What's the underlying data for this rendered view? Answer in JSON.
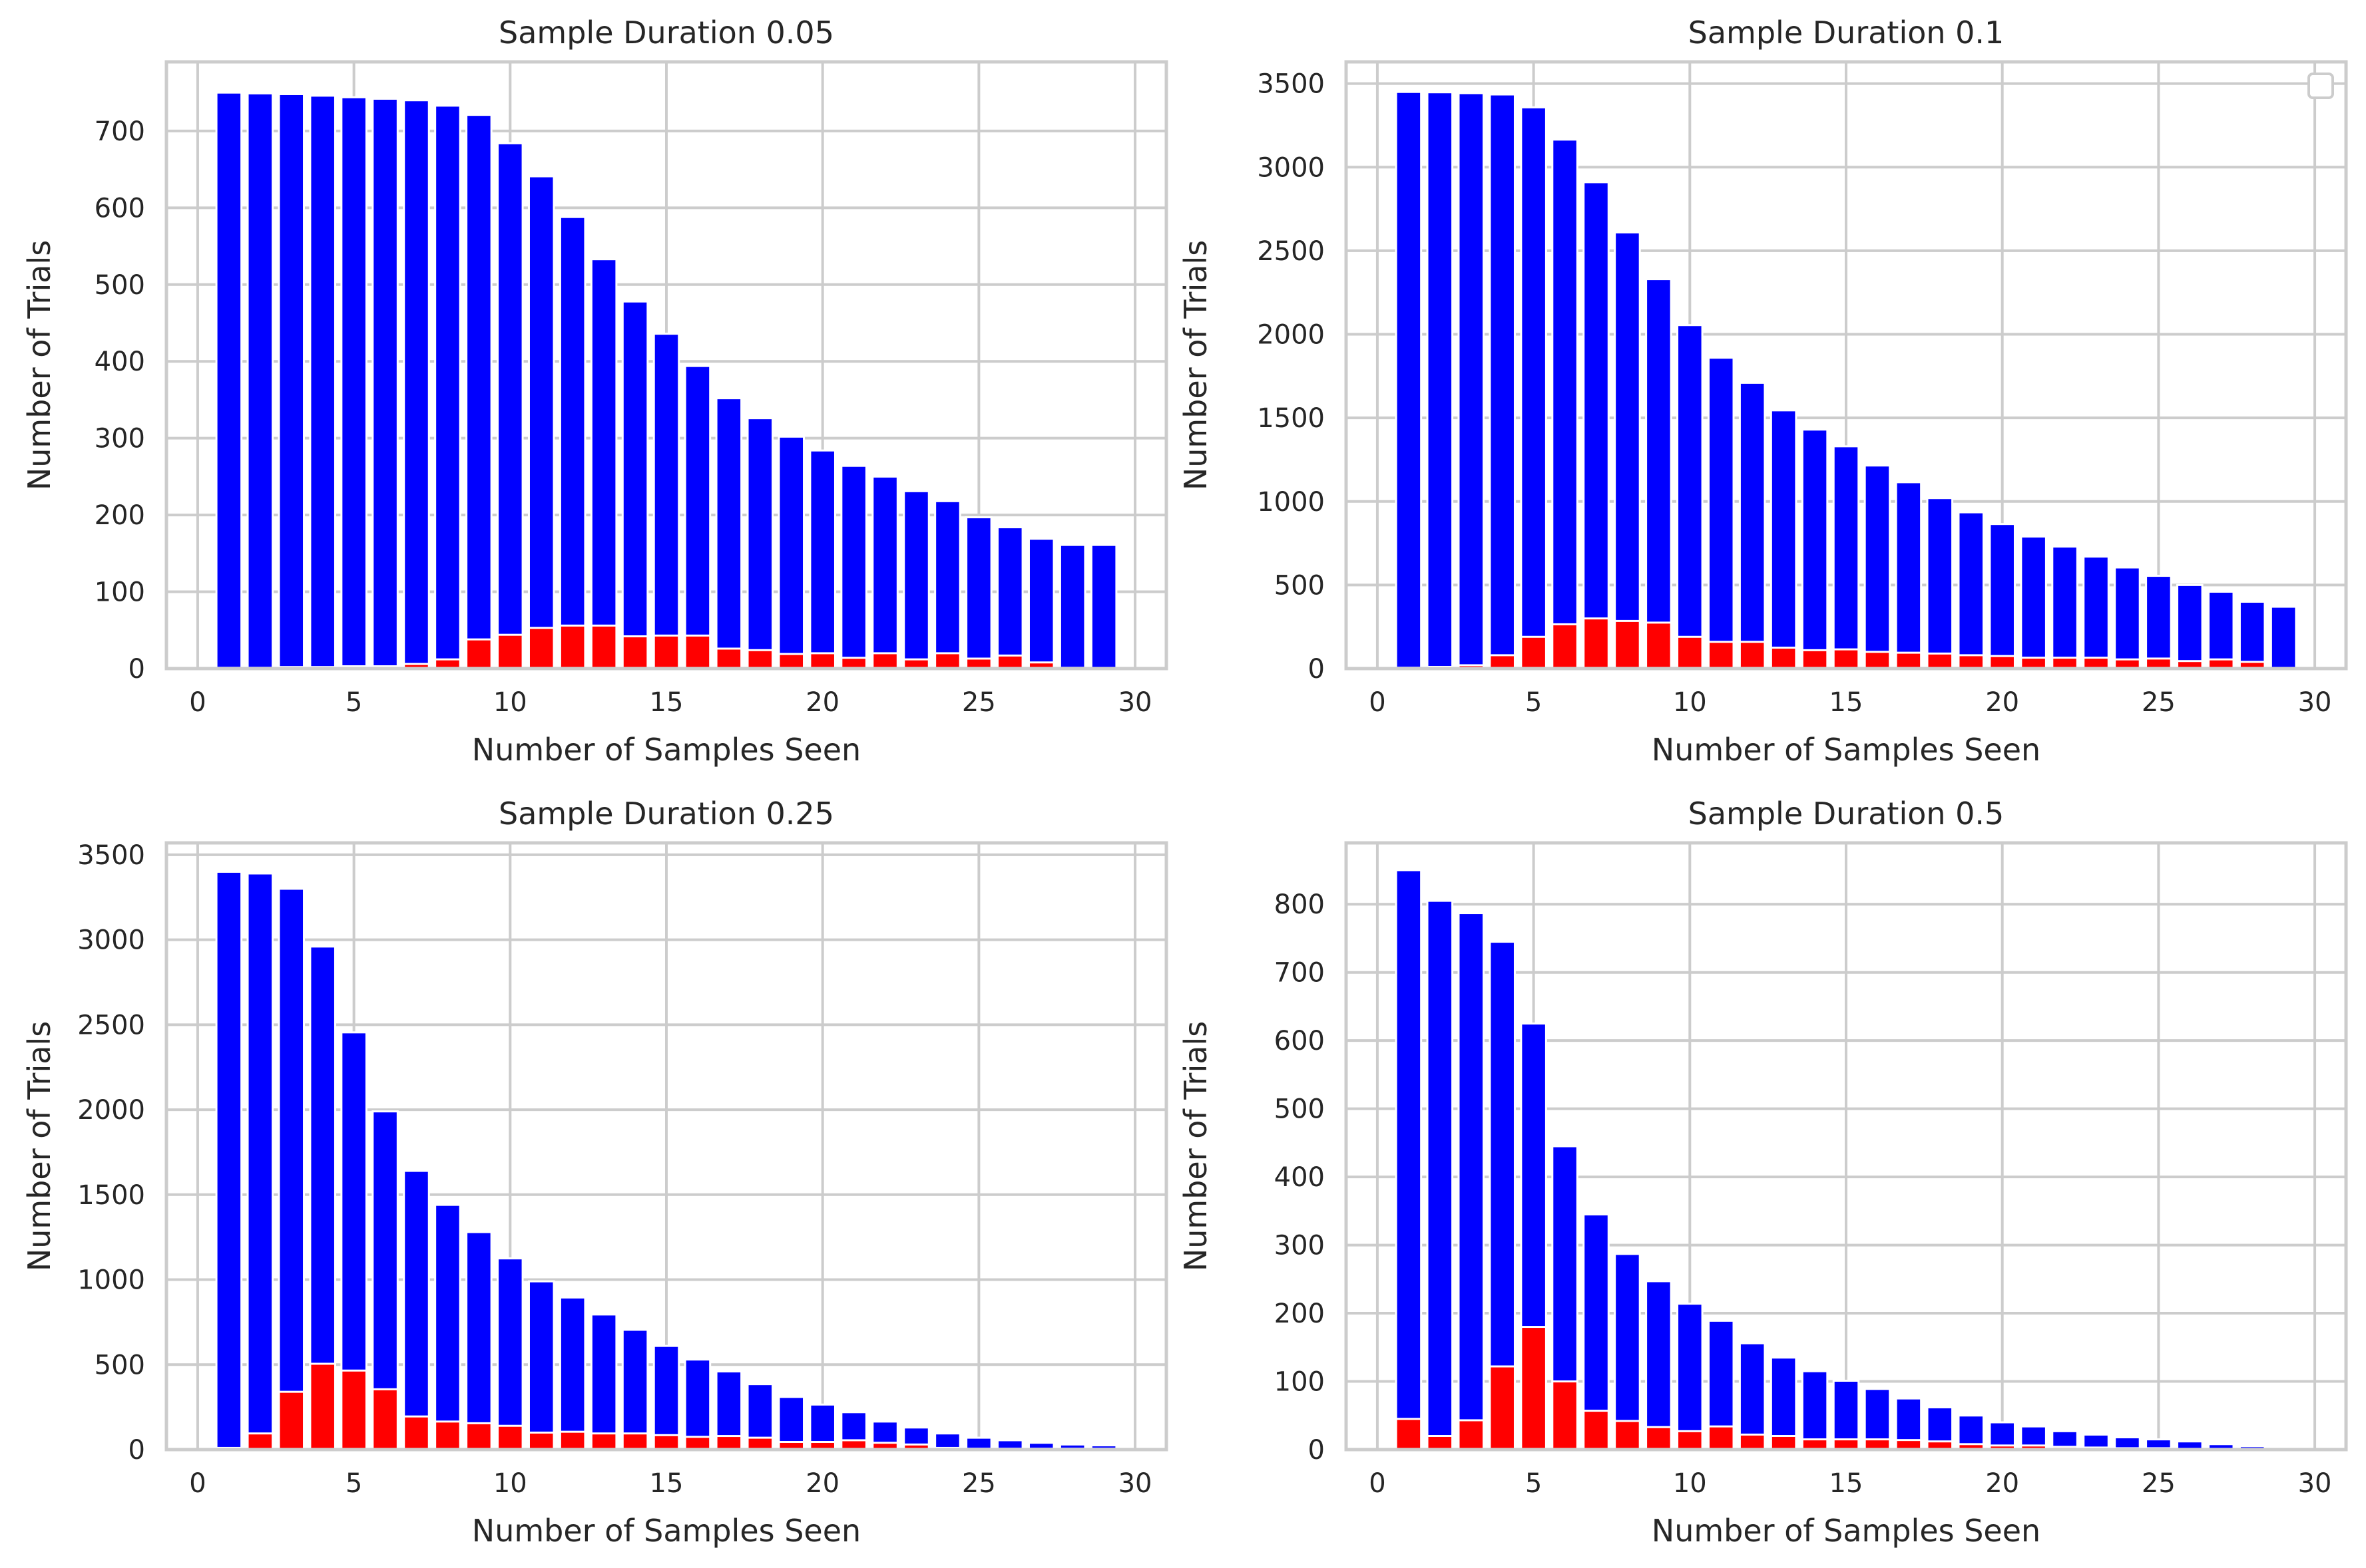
{
  "figure": {
    "layout": "2x2",
    "colors": {
      "total": "#0000ff",
      "subset": "#ff0000",
      "grid": "#cccccc",
      "bar_edge": "#ffffff"
    }
  },
  "chart_data": [
    {
      "type": "bar",
      "title": "Sample Duration 0.05",
      "xlabel": "Number of Samples Seen",
      "ylabel": "Number of Trials",
      "xlim": [
        -1,
        31
      ],
      "ylim": [
        0,
        790
      ],
      "xticks": [
        0,
        5,
        10,
        15,
        20,
        25,
        30
      ],
      "yticks": [
        0,
        100,
        200,
        300,
        400,
        500,
        600,
        700
      ],
      "grid": true,
      "legend": false,
      "x": [
        1,
        2,
        3,
        4,
        5,
        6,
        7,
        8,
        9,
        10,
        11,
        12,
        13,
        14,
        15,
        16,
        17,
        18,
        19,
        20,
        21,
        22,
        23,
        24,
        25,
        26,
        27,
        28,
        29
      ],
      "series": [
        {
          "color": "#0000ff",
          "values": [
            750,
            749,
            748,
            746,
            744,
            742,
            740,
            733,
            721,
            684,
            641,
            588,
            533,
            478,
            436,
            394,
            352,
            326,
            302,
            284,
            264,
            250,
            231,
            218,
            197,
            184,
            169,
            161,
            161
          ]
        },
        {
          "color": "#ff0000",
          "values": [
            1,
            1,
            2,
            2,
            3,
            3,
            6,
            12,
            38,
            44,
            53,
            56,
            56,
            42,
            43,
            43,
            26,
            24,
            19,
            20,
            14,
            20,
            12,
            20,
            13,
            17,
            8,
            1,
            0
          ]
        }
      ]
    },
    {
      "type": "bar",
      "title": "Sample Duration 0.1",
      "xlabel": "Number of Samples Seen",
      "ylabel": "Number of Trials",
      "xlim": [
        -1,
        31
      ],
      "ylim": [
        0,
        3630
      ],
      "xticks": [
        0,
        5,
        10,
        15,
        20,
        25,
        30
      ],
      "yticks": [
        0,
        500,
        1000,
        1500,
        2000,
        2500,
        3000,
        3500
      ],
      "grid": true,
      "legend": true,
      "legend_placement": "top-right",
      "x": [
        1,
        2,
        3,
        4,
        5,
        6,
        7,
        8,
        9,
        10,
        11,
        12,
        13,
        14,
        15,
        16,
        17,
        18,
        19,
        20,
        21,
        22,
        23,
        24,
        25,
        26,
        27,
        28,
        29
      ],
      "series": [
        {
          "color": "#0000ff",
          "values": [
            3450,
            3448,
            3443,
            3435,
            3358,
            3165,
            2910,
            2610,
            2330,
            2055,
            1860,
            1710,
            1545,
            1430,
            1330,
            1215,
            1115,
            1020,
            935,
            865,
            790,
            730,
            670,
            605,
            555,
            500,
            460,
            400,
            370
          ]
        },
        {
          "color": "#ff0000",
          "values": [
            5,
            10,
            20,
            80,
            190,
            265,
            300,
            285,
            275,
            190,
            160,
            160,
            125,
            110,
            115,
            100,
            95,
            90,
            80,
            75,
            65,
            65,
            65,
            55,
            60,
            45,
            55,
            40,
            0
          ]
        }
      ]
    },
    {
      "type": "bar",
      "title": "Sample Duration 0.25",
      "xlabel": "Number of Samples Seen",
      "ylabel": "Number of Trials",
      "xlim": [
        -1,
        31
      ],
      "ylim": [
        0,
        3570
      ],
      "xticks": [
        0,
        5,
        10,
        15,
        20,
        25,
        30
      ],
      "yticks": [
        0,
        500,
        1000,
        1500,
        2000,
        2500,
        3000,
        3500
      ],
      "grid": true,
      "legend": false,
      "x": [
        1,
        2,
        3,
        4,
        5,
        6,
        7,
        8,
        9,
        10,
        11,
        12,
        13,
        14,
        15,
        16,
        17,
        18,
        19,
        20,
        21,
        22,
        23,
        24,
        25,
        26,
        27,
        28,
        29
      ],
      "series": [
        {
          "color": "#0000ff",
          "values": [
            3400,
            3390,
            3300,
            2960,
            2455,
            1990,
            1640,
            1440,
            1280,
            1125,
            990,
            895,
            795,
            705,
            610,
            530,
            460,
            385,
            310,
            265,
            220,
            165,
            130,
            95,
            70,
            55,
            40,
            30,
            25
          ]
        },
        {
          "color": "#ff0000",
          "values": [
            10,
            95,
            340,
            505,
            465,
            355,
            195,
            165,
            155,
            140,
            100,
            105,
            95,
            95,
            85,
            75,
            80,
            70,
            45,
            45,
            55,
            40,
            30,
            10,
            5,
            5,
            5,
            5,
            5
          ]
        }
      ]
    },
    {
      "type": "bar",
      "title": "Sample Duration 0.5",
      "xlabel": "Number of Samples Seen",
      "ylabel": "Number of Trials",
      "xlim": [
        -1,
        31
      ],
      "ylim": [
        0,
        890
      ],
      "xticks": [
        0,
        5,
        10,
        15,
        20,
        25,
        30
      ],
      "yticks": [
        0,
        100,
        200,
        300,
        400,
        500,
        600,
        700,
        800
      ],
      "grid": true,
      "legend": false,
      "x": [
        1,
        2,
        3,
        4,
        5,
        6,
        7,
        8,
        9,
        10,
        11,
        12,
        13,
        14,
        15,
        16,
        17,
        18,
        19,
        20,
        21,
        22,
        23,
        24,
        25,
        26,
        27,
        28,
        29
      ],
      "series": [
        {
          "color": "#0000ff",
          "values": [
            850,
            805,
            787,
            745,
            625,
            445,
            345,
            287,
            247,
            214,
            189,
            156,
            135,
            115,
            101,
            89,
            75,
            62,
            50,
            40,
            34,
            27,
            22,
            18,
            15,
            12,
            8,
            5,
            3
          ]
        },
        {
          "color": "#ff0000",
          "values": [
            45,
            20,
            43,
            122,
            180,
            100,
            57,
            42,
            33,
            27,
            34,
            22,
            20,
            15,
            15,
            15,
            14,
            12,
            8,
            6,
            6,
            4,
            3,
            2,
            2,
            1,
            1,
            0,
            0
          ]
        }
      ]
    }
  ]
}
